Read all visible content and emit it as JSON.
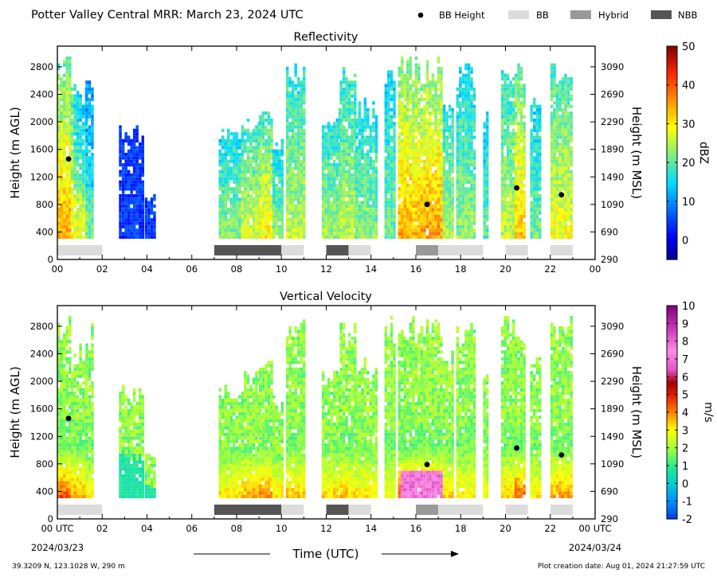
{
  "title": "Potter Valley Central MRR:  March 23, 2024 UTC",
  "legend": [
    {
      "label": "BB Height",
      "kind": "dot",
      "color": "#000000"
    },
    {
      "label": "BB",
      "kind": "box",
      "color": "#dcdcdc"
    },
    {
      "label": "Hybrid",
      "kind": "box",
      "color": "#999999"
    },
    {
      "label": "NBB",
      "kind": "box",
      "color": "#555555"
    }
  ],
  "xlabel": "Time (UTC)",
  "date_start": "2024/03/23",
  "date_end": "2024/03/24",
  "footer_left": "39.3209 N, 123.1028 W, 290 m",
  "footer_right": "Plot creation date: Aug 01, 2024 21:27:59 UTC",
  "chart_data": [
    {
      "type": "heatmap",
      "title": "Reflectivity",
      "ylabel": "Height (m AGL)",
      "ylabel_right": "Height (m MSL)",
      "xlim": [
        0,
        24
      ],
      "ylim": [
        0,
        3100
      ],
      "x_ticks": [
        "00",
        "02",
        "04",
        "06",
        "08",
        "10",
        "12",
        "14",
        "16",
        "18",
        "20",
        "22",
        "00"
      ],
      "y_ticks": [
        0,
        400,
        800,
        1200,
        1600,
        2000,
        2400,
        2800
      ],
      "y_ticks_right": [
        290,
        690,
        1090,
        1490,
        1890,
        2290,
        2690,
        3090
      ],
      "colorbar": {
        "label": "dBZ",
        "min": -5,
        "max": 50,
        "ticks": [
          0,
          10,
          20,
          30,
          40,
          50
        ]
      },
      "bb_heights": [
        {
          "time": 0.5,
          "height": 1460
        },
        {
          "time": 16.5,
          "height": 800
        },
        {
          "time": 20.5,
          "height": 1040
        },
        {
          "time": 22.5,
          "height": 940
        }
      ],
      "bb_periods": [
        {
          "start": 0,
          "end": 2,
          "type": "BB"
        },
        {
          "start": 7,
          "end": 10,
          "type": "NBB"
        },
        {
          "start": 10,
          "end": 11,
          "type": "BB"
        },
        {
          "start": 12,
          "end": 13,
          "type": "NBB"
        },
        {
          "start": 13,
          "end": 14,
          "type": "BB"
        },
        {
          "start": 16,
          "end": 17,
          "type": "Hybrid"
        },
        {
          "start": 17,
          "end": 19,
          "type": "BB"
        },
        {
          "start": 20,
          "end": 21,
          "type": "BB"
        },
        {
          "start": 22,
          "end": 23,
          "type": "BB"
        }
      ]
    },
    {
      "type": "heatmap",
      "title": "Vertical Velocity",
      "ylabel": "Height (m AGL)",
      "ylabel_right": "Height (m MSL)",
      "xlim": [
        0,
        24
      ],
      "ylim": [
        0,
        3100
      ],
      "x_ticks": [
        "00 UTC",
        "02",
        "04",
        "06",
        "08",
        "10",
        "12",
        "14",
        "16",
        "18",
        "20",
        "22",
        "00 UTC"
      ],
      "y_ticks": [
        0,
        400,
        800,
        1200,
        1600,
        2000,
        2400,
        2800
      ],
      "y_ticks_right": [
        290,
        690,
        1090,
        1490,
        1890,
        2290,
        2690,
        3090
      ],
      "colorbar": {
        "label": "m/s",
        "min": -2,
        "max": 10,
        "ticks": [
          -2,
          -1,
          0,
          1,
          2,
          3,
          4,
          5,
          6,
          7,
          8,
          9,
          10
        ]
      },
      "bb_heights": [
        {
          "time": 0.5,
          "height": 1460
        },
        {
          "time": 16.5,
          "height": 790
        },
        {
          "time": 20.5,
          "height": 1030
        },
        {
          "time": 22.5,
          "height": 930
        }
      ],
      "bb_periods": [
        {
          "start": 0,
          "end": 2,
          "type": "BB"
        },
        {
          "start": 7,
          "end": 10,
          "type": "NBB"
        },
        {
          "start": 10,
          "end": 11,
          "type": "BB"
        },
        {
          "start": 12,
          "end": 13,
          "type": "NBB"
        },
        {
          "start": 13,
          "end": 14,
          "type": "BB"
        },
        {
          "start": 16,
          "end": 17,
          "type": "Hybrid"
        },
        {
          "start": 17,
          "end": 19,
          "type": "BB"
        },
        {
          "start": 20,
          "end": 21,
          "type": "BB"
        },
        {
          "start": 22,
          "end": 23,
          "type": "BB"
        }
      ]
    }
  ]
}
